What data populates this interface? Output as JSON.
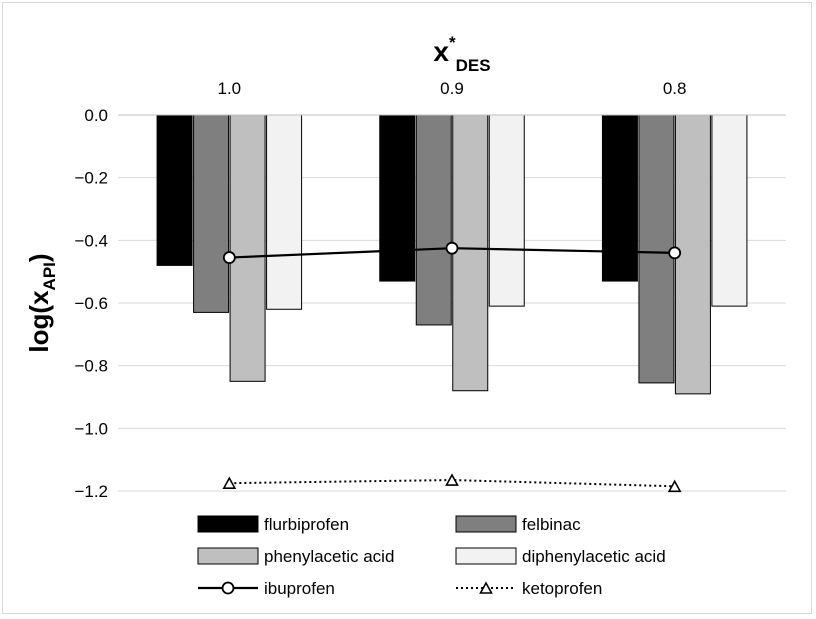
{
  "chart_data": {
    "type": "bar",
    "title": "x*DES",
    "title_main": "x",
    "title_sup": "*",
    "title_sub": "DES",
    "ylabel_main": "log(x",
    "ylabel_sub": "API",
    "ylabel_close": ")",
    "categories": [
      "1.0",
      "0.9",
      "0.8"
    ],
    "x_axis_position": "top",
    "ylim": [
      -1.2,
      0.0
    ],
    "yticks": [
      {
        "value": 0.0,
        "label": "0.0"
      },
      {
        "value": -0.2,
        "label": "−0.2"
      },
      {
        "value": -0.4,
        "label": "−0.4"
      },
      {
        "value": -0.6,
        "label": "−0.6"
      },
      {
        "value": -0.8,
        "label": "−0.8"
      },
      {
        "value": -1.0,
        "label": "−1.0"
      },
      {
        "value": -1.2,
        "label": "−1.2"
      }
    ],
    "grid": true,
    "series": [
      {
        "name": "flurbiprofen",
        "kind": "bar",
        "color": "#000000",
        "values": [
          -0.48,
          -0.53,
          -0.53
        ]
      },
      {
        "name": "felbinac",
        "kind": "bar",
        "color": "#7f7f7f",
        "values": [
          -0.63,
          -0.67,
          -0.855
        ]
      },
      {
        "name": "phenylacetic acid",
        "kind": "bar",
        "color": "#bfbfbf",
        "values": [
          -0.85,
          -0.88,
          -0.89
        ]
      },
      {
        "name": "diphenylacetic acid",
        "kind": "bar",
        "color": "#f2f2f2",
        "values": [
          -0.62,
          -0.61,
          -0.61
        ]
      },
      {
        "name": "ibuprofen",
        "kind": "line",
        "marker": "circle",
        "dash": "solid",
        "color": "#000000",
        "values": [
          -0.455,
          -0.425,
          -0.44
        ]
      },
      {
        "name": "ketoprofen",
        "kind": "line",
        "marker": "triangle",
        "dash": "dotted",
        "color": "#000000",
        "values": [
          -1.175,
          -1.165,
          -1.185
        ]
      }
    ],
    "legend_position": "bottom"
  }
}
